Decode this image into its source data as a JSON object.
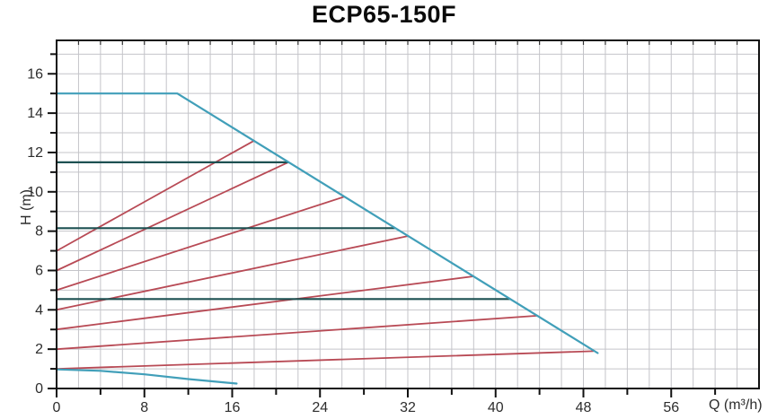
{
  "chart_data": {
    "type": "line",
    "title": "ECP65-150F",
    "xlabel": "Q (m³/h)",
    "ylabel": "H (m)",
    "xlim": [
      0,
      64
    ],
    "ylim": [
      0,
      17.7
    ],
    "x_tick_labels": [
      0,
      8,
      16,
      24,
      32,
      40,
      48,
      56
    ],
    "x_tick_step": 4,
    "x_grid_step": 2,
    "y_tick_labels": [
      0,
      2,
      4,
      6,
      8,
      10,
      12,
      14,
      16
    ],
    "y_tick_step": 1,
    "y_grid_step": 1,
    "grid": true,
    "legend": "none",
    "colors": {
      "envelope_blue": "#419fb9",
      "trim_red": "#b84a55",
      "duty_teal": "#1d5152",
      "grid": "#c4c4c9",
      "axis": "#111111",
      "text": "#2d2d2d"
    },
    "series": [
      {
        "name": "trim-curve-7",
        "color": "#b84a55",
        "width": 1.8,
        "points": [
          [
            0,
            7
          ],
          [
            18,
            12.6
          ]
        ]
      },
      {
        "name": "trim-curve-6",
        "color": "#b84a55",
        "width": 1.8,
        "points": [
          [
            0,
            6
          ],
          [
            21.1,
            11.5
          ]
        ]
      },
      {
        "name": "trim-curve-5",
        "color": "#b84a55",
        "width": 1.8,
        "points": [
          [
            0,
            5
          ],
          [
            26.2,
            9.75
          ]
        ]
      },
      {
        "name": "trim-curve-4",
        "color": "#b84a55",
        "width": 1.8,
        "points": [
          [
            0,
            4
          ],
          [
            32,
            7.75
          ]
        ]
      },
      {
        "name": "trim-curve-3",
        "color": "#b84a55",
        "width": 1.8,
        "points": [
          [
            0,
            3
          ],
          [
            37.9,
            5.7
          ]
        ]
      },
      {
        "name": "trim-curve-2",
        "color": "#b84a55",
        "width": 1.8,
        "points": [
          [
            0,
            2
          ],
          [
            43.8,
            3.7
          ]
        ]
      },
      {
        "name": "trim-curve-1",
        "color": "#b84a55",
        "width": 1.8,
        "points": [
          [
            0,
            1
          ],
          [
            48.9,
            1.9
          ]
        ]
      },
      {
        "name": "duty-line-high",
        "color": "#1d5152",
        "width": 2.2,
        "points": [
          [
            0,
            11.5
          ],
          [
            21.1,
            11.5
          ]
        ]
      },
      {
        "name": "duty-line-mid",
        "color": "#1d5152",
        "width": 2.2,
        "points": [
          [
            0,
            8.15
          ],
          [
            30.8,
            8.15
          ]
        ]
      },
      {
        "name": "duty-line-low",
        "color": "#1d5152",
        "width": 2.2,
        "points": [
          [
            0,
            4.55
          ],
          [
            41.3,
            4.55
          ]
        ]
      },
      {
        "name": "max-head-envelope",
        "color": "#419fb9",
        "width": 2.2,
        "points": [
          [
            0,
            15
          ],
          [
            11,
            15
          ],
          [
            49.3,
            1.8
          ]
        ]
      },
      {
        "name": "min-head-curve",
        "color": "#419fb9",
        "width": 2.2,
        "points": [
          [
            0,
            0.97
          ],
          [
            4,
            0.9
          ],
          [
            8,
            0.72
          ],
          [
            12,
            0.48
          ],
          [
            16.4,
            0.25
          ]
        ]
      }
    ]
  }
}
